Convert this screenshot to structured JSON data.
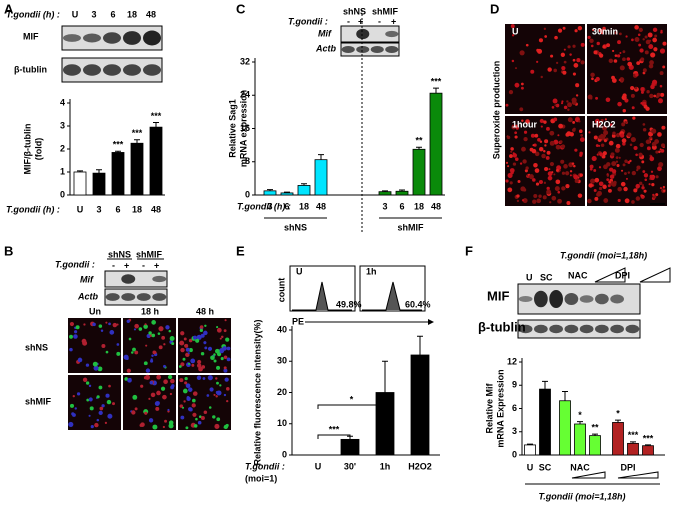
{
  "panels": [
    "A",
    "B",
    "C",
    "D",
    "E",
    "F"
  ],
  "panel_a": {
    "treatment_label": "T.gondii (h) :",
    "lanes": [
      "U",
      "3",
      "6",
      "18",
      "48"
    ],
    "blots": [
      "MIF",
      "β-tublin"
    ]
  },
  "panel_b": {
    "treatment_label": "T.gondii :",
    "groups": [
      "shNS",
      "shMIF"
    ],
    "signs": [
      "-",
      "+",
      "-",
      "+"
    ],
    "blots": [
      "Mif",
      "Actb"
    ],
    "columns": [
      "Un",
      "18 h",
      "48 h"
    ],
    "rows": [
      "shNS",
      "shMIF"
    ]
  },
  "panel_c_blot": {
    "treatment_label": "T.gondii :",
    "groups": [
      "shNS",
      "shMIF"
    ],
    "signs": [
      "-",
      "+",
      "-",
      "+"
    ],
    "blots": [
      "Mif",
      "Actb"
    ]
  },
  "panel_d": {
    "ylabel": "Superoxide production",
    "images": [
      "U",
      "30min",
      "1hour",
      "H2O2"
    ]
  },
  "panel_e_hist": {
    "ylabel": "count",
    "xlabel": "PE",
    "panels": [
      {
        "label": "U",
        "value_label": "49.8%"
      },
      {
        "label": "1h",
        "value_label": "60.4%"
      }
    ]
  },
  "panel_f_blot": {
    "treatment_label": "T.gondii (moi=1,18h)",
    "lanes": [
      "U",
      "SC",
      "NAC",
      "DPI"
    ],
    "blots": [
      "MIF",
      "β-tublin"
    ]
  },
  "chart_data": [
    {
      "type": "bar",
      "ylabel": [
        "MIF/β-tublin",
        "(fold)"
      ],
      "xlabel": "T.gondii (h) :",
      "categories": [
        "U",
        "3",
        "6",
        "18",
        "48"
      ],
      "values": [
        1.0,
        0.95,
        1.85,
        2.25,
        2.95
      ],
      "errors": [
        0.05,
        0.15,
        0.05,
        0.15,
        0.2
      ],
      "colors": [
        "#ffffff",
        "#000000",
        "#000000",
        "#000000",
        "#000000"
      ],
      "annotations": [
        null,
        null,
        "***",
        "***",
        "***"
      ],
      "ylim": [
        0,
        4
      ],
      "yticks": [
        0,
        1,
        2,
        3,
        4
      ]
    },
    {
      "type": "grouped_bar",
      "ylabel": [
        "Relative Sag1",
        "mRNA expression"
      ],
      "xlabel": "T.gondii (h) :",
      "categories": [
        "3",
        "6",
        "18",
        "48"
      ],
      "series": [
        {
          "name": "shNS",
          "color": "#00e5ff",
          "values": [
            1.0,
            0.5,
            2.3,
            8.5
          ],
          "errors": [
            0.3,
            0.2,
            0.4,
            1.2
          ],
          "annotations": [
            null,
            null,
            null,
            null
          ]
        },
        {
          "name": "shMIF",
          "color": "#0a8a0a",
          "values": [
            0.8,
            0.9,
            11,
            24.5
          ],
          "errors": [
            0.2,
            0.3,
            0.5,
            1.2
          ],
          "annotations": [
            null,
            null,
            "**",
            "***"
          ]
        }
      ],
      "ylim": [
        0,
        32
      ],
      "yticks": [
        0,
        8,
        16,
        24,
        32
      ]
    },
    {
      "type": "bar",
      "ylabel": [
        "Relative fluorescence intensity(%)"
      ],
      "xlabel": [
        "T.gondii :",
        "(moi=1)"
      ],
      "categories": [
        "U",
        "30'",
        "1h",
        "H2O2"
      ],
      "values": [
        0,
        5,
        20,
        32
      ],
      "errors": [
        0,
        1,
        10,
        6
      ],
      "colors": [
        "#000000",
        "#000000",
        "#000000",
        "#000000"
      ],
      "brackets": [
        {
          "text": "***",
          "from": "U",
          "to": "30'"
        },
        {
          "text": "*",
          "from": "U",
          "to": "1h"
        }
      ],
      "ylim": [
        0,
        40
      ],
      "yticks": [
        0,
        10,
        20,
        30,
        40
      ]
    },
    {
      "type": "bar",
      "ylabel": [
        "Relative Mif",
        "mRNA Expression"
      ],
      "xlabel": "T.gondii (moi=1,18h)",
      "categories": [
        "U",
        "SC",
        null,
        null,
        null,
        null,
        null,
        null
      ],
      "group_labels": [
        "NAC",
        "DPI"
      ],
      "values": [
        1.3,
        8.5,
        7,
        4,
        2.5,
        4.2,
        1.5,
        1.2
      ],
      "errors": [
        0.1,
        1.0,
        1.2,
        0.3,
        0.2,
        0.3,
        0.2,
        0.1
      ],
      "colors": [
        "#ffffff",
        "#000000",
        "#66ff33",
        "#66ff33",
        "#66ff33",
        "#b22222",
        "#b22222",
        "#b22222"
      ],
      "annotations": [
        null,
        null,
        null,
        "*",
        "**",
        "*",
        "***",
        "***"
      ],
      "ylim": [
        0,
        12
      ],
      "yticks": [
        0,
        3,
        6,
        9,
        12
      ]
    }
  ]
}
